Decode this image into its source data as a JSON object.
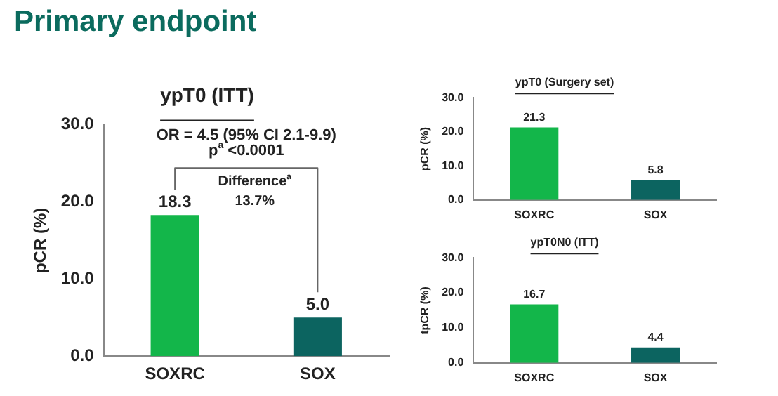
{
  "chart_data": [
    {
      "type": "bar",
      "title": "Primary endpoint",
      "subtitle": "ypT0 (ITT)",
      "ylabel": "pCR (%)",
      "categories": [
        "SOXRC",
        "SOX"
      ],
      "values": [
        18.3,
        5.0
      ],
      "colors": [
        "#13b64a",
        "#0c6460"
      ],
      "value_labels": [
        "18.3",
        "5.0"
      ],
      "ylim": [
        0,
        30
      ],
      "yticks": [
        {
          "value": 0,
          "label": "0.0"
        },
        {
          "value": 10,
          "label": "10.0"
        },
        {
          "value": 20,
          "label": "20.0"
        },
        {
          "value": 30,
          "label": "30.0"
        }
      ],
      "grid": false,
      "legend": false,
      "annotations": [
        "OR = 4.5 (95% CI 2.1-9.9)",
        "p$^{a}$ <0.0001",
        "Difference$^{a}$\n13.7%"
      ]
    },
    {
      "type": "bar",
      "subtitle": "ypT0 (Surgery set)",
      "ylabel": "pCR (%)",
      "categories": [
        "SOXRC",
        "SOX"
      ],
      "values": [
        21.3,
        5.8
      ],
      "colors": [
        "#13b64a",
        "#0c6460"
      ],
      "value_labels": [
        "21.3",
        "5.8"
      ],
      "ylim": [
        0,
        30
      ],
      "yticks": [
        {
          "value": 0,
          "label": "0.0"
        },
        {
          "value": 10,
          "label": "10.0"
        },
        {
          "value": 20,
          "label": "20.0"
        },
        {
          "value": 30,
          "label": "30.0"
        }
      ],
      "grid": false,
      "legend": false
    },
    {
      "type": "bar",
      "subtitle": "ypT0N0 (ITT)",
      "ylabel": "tpCR (%)",
      "categories": [
        "SOXRC",
        "SOX"
      ],
      "values": [
        16.7,
        4.4
      ],
      "colors": [
        "#13b64a",
        "#0c6460"
      ],
      "value_labels": [
        "16.7",
        "4.4"
      ],
      "ylim": [
        0,
        30
      ],
      "yticks": [
        {
          "value": 0,
          "label": "0.0"
        },
        {
          "value": 10,
          "label": "10.0"
        },
        {
          "value": 20,
          "label": "20.0"
        },
        {
          "value": 30,
          "label": "30.0"
        }
      ],
      "grid": false,
      "legend": false
    }
  ]
}
